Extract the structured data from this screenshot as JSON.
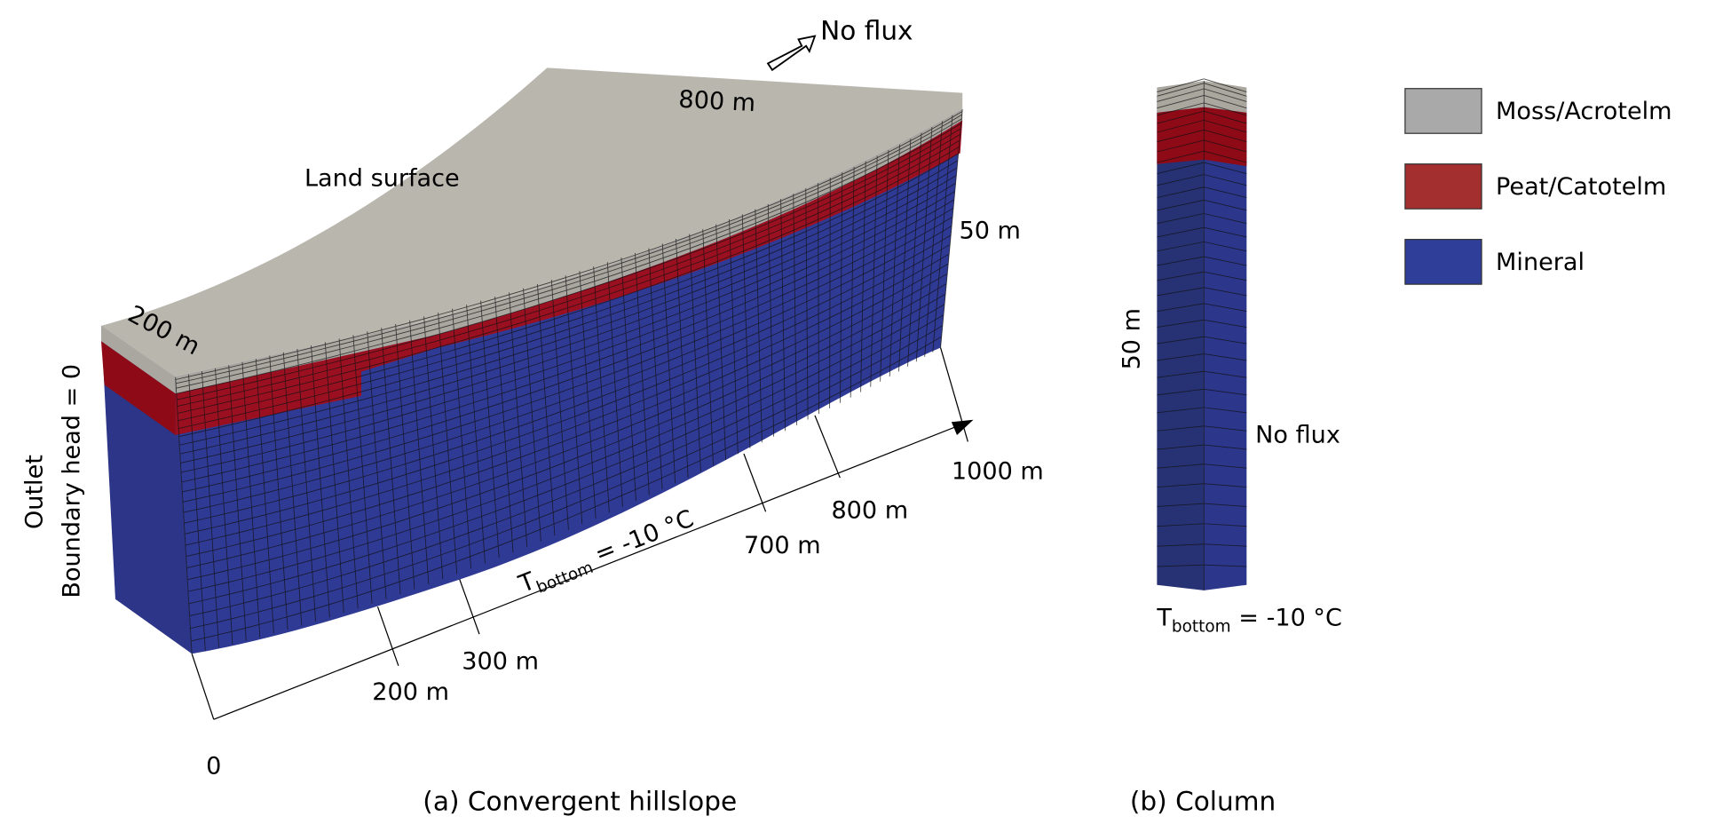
{
  "colors": {
    "moss": "#a9a9a9",
    "peat": "#a3302e",
    "mineral": "#2f3f99",
    "moss_mesh": "#b9b6ad",
    "peat_mesh": "#8e0a17",
    "mineral_mesh": "#2c3587"
  },
  "hillslope": {
    "top_label": "No flux",
    "width_label": "800 m",
    "surface_label": "Land surface",
    "depth_label": "50 m",
    "outlet_width_label": "200 m",
    "outlet_label": "Outlet",
    "boundary_label": "Boundary head = 0",
    "bottom_label_main": "T",
    "bottom_label_sub": "bottom",
    "bottom_label_rest": " = -10 °C",
    "axis_ticks": [
      "0",
      "200 m",
      "300 m",
      "700 m",
      "800 m",
      "1000 m"
    ],
    "caption": "(a) Convergent hillslope"
  },
  "column": {
    "depth_label": "50 m",
    "side_label": "No flux",
    "bottom_label_main": "T",
    "bottom_label_sub": "bottom",
    "bottom_label_rest": " = -10 °C",
    "caption": "(b) Column"
  },
  "legend": [
    {
      "label": "Moss/Acrotelm",
      "color": "#a9a9a9"
    },
    {
      "label": "Peat/Catotelm",
      "color": "#a3302e"
    },
    {
      "label": "Mineral",
      "color": "#2f3f99"
    }
  ]
}
